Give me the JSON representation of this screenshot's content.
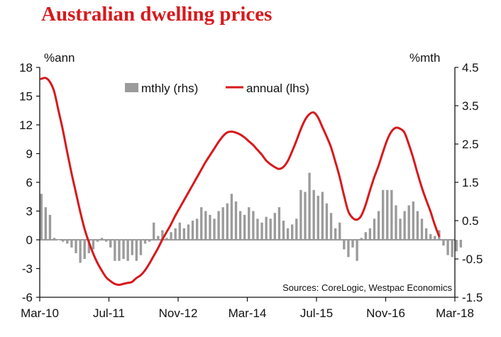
{
  "chart_data": {
    "type": "bar+line",
    "title": "Australian dwelling prices",
    "left_axis": {
      "label": "%ann",
      "min": -6,
      "max": 18,
      "ticks": [
        18,
        15,
        12,
        9,
        6,
        3,
        0,
        -3,
        -6
      ]
    },
    "right_axis": {
      "label": "%mth",
      "min": -1.5,
      "max": 4.5,
      "ticks": [
        "4.5",
        "3.5",
        "2.5",
        "1.5",
        "0.5",
        "-0.5",
        "-1.5"
      ]
    },
    "x_ticks": [
      "Mar-10",
      "Jul-11",
      "Nov-12",
      "Mar-14",
      "Jul-15",
      "Nov-16",
      "Mar-18"
    ],
    "start": {
      "year": 2010,
      "month": 3
    },
    "legend": {
      "bars": "mthly (rhs)",
      "line": "annual (lhs)"
    },
    "source": "Sources: CoreLogic, Westpac Economics",
    "colors": {
      "bars": "#9b9b9b",
      "line": "#d7191c",
      "title": "#d7191c",
      "axis": "#111111"
    },
    "series": [
      {
        "name": "mthly (rhs)",
        "type": "bar",
        "axis": "right",
        "values": [
          1.2,
          0.85,
          0.65,
          0.05,
          0.0,
          -0.05,
          -0.1,
          -0.2,
          -0.35,
          -0.6,
          -0.5,
          -0.35,
          -0.25,
          -0.05,
          0.05,
          -0.05,
          -0.2,
          -0.55,
          -0.55,
          -0.5,
          -0.55,
          -0.4,
          -0.55,
          -0.4,
          -0.1,
          -0.05,
          0.45,
          0.1,
          0.25,
          0.05,
          0.2,
          0.3,
          0.45,
          0.3,
          0.4,
          0.5,
          0.55,
          0.85,
          0.75,
          0.65,
          0.55,
          0.75,
          0.85,
          0.95,
          1.2,
          1.0,
          0.75,
          0.65,
          0.85,
          0.75,
          0.55,
          0.45,
          0.6,
          0.55,
          0.7,
          0.85,
          0.5,
          0.3,
          0.4,
          0.55,
          1.3,
          1.25,
          1.75,
          1.3,
          1.15,
          1.25,
          0.95,
          0.7,
          0.3,
          0.45,
          -0.25,
          -0.45,
          -0.2,
          -0.55,
          0.05,
          0.2,
          0.3,
          0.55,
          0.75,
          1.3,
          1.3,
          1.3,
          0.9,
          0.55,
          0.75,
          0.9,
          1.0,
          0.75,
          0.55,
          0.3,
          0.15,
          0.1,
          0.25,
          -0.15,
          -0.4,
          -0.45,
          -0.3,
          -0.2
        ]
      },
      {
        "name": "annual (lhs)",
        "type": "line",
        "axis": "left",
        "values": [
          16.8,
          16.9,
          16.5,
          15.5,
          13.5,
          11.5,
          9.2,
          7.0,
          5.0,
          3.0,
          1.2,
          -0.2,
          -1.4,
          -2.4,
          -3.2,
          -3.9,
          -4.3,
          -4.6,
          -4.7,
          -4.6,
          -4.5,
          -4.4,
          -4.0,
          -3.7,
          -3.2,
          -2.5,
          -1.7,
          -0.9,
          0.0,
          0.8,
          1.6,
          2.5,
          3.3,
          4.1,
          4.9,
          5.7,
          6.5,
          7.3,
          8.1,
          8.8,
          9.5,
          10.2,
          10.8,
          11.2,
          11.3,
          11.2,
          11.0,
          10.7,
          10.3,
          9.9,
          9.4,
          8.9,
          8.3,
          7.9,
          7.6,
          7.4,
          7.6,
          8.2,
          9.2,
          10.3,
          11.5,
          12.5,
          13.1,
          13.3,
          12.8,
          11.8,
          10.8,
          9.7,
          8.2,
          6.6,
          4.7,
          3.0,
          2.3,
          2.1,
          2.5,
          3.6,
          5.1,
          6.5,
          7.7,
          9.1,
          10.4,
          11.3,
          11.7,
          11.6,
          11.2,
          10.0,
          8.6,
          7.0,
          5.5,
          4.2,
          3.0,
          1.6,
          0.4
        ]
      }
    ]
  }
}
